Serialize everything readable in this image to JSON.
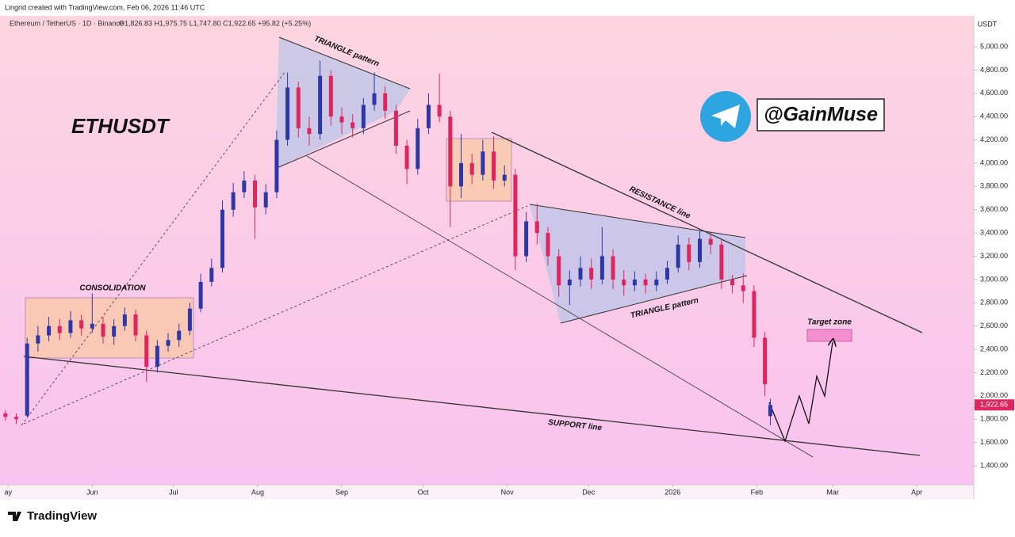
{
  "credit": "Lingrid created with TradingView.com, Feb 06, 2026 11:46 UTC",
  "brand": "TradingView",
  "chart_data": {
    "type": "candlestick",
    "symbol_legend": "Ethereum / TetherUS · 1D · Binance",
    "ohlc_legend": "O1,826.83 H1,975.75 L1,747.80 C1,922.65 +95.82 (+5.25%)",
    "currency": "USDT",
    "last_label": "1,922.65",
    "title": "ETHUSDT",
    "handle": "@GainMuse",
    "annotations": {
      "triangle_top": "TRIANGLE pattern",
      "triangle_bottom": "TRIANGLE pattern",
      "resistance": "RESISTANCE line",
      "support": "SUPPORT line",
      "consolidation": "CONSOLIDATION",
      "target": "Target zone"
    },
    "up_color": "#2e37a8",
    "down_color": "#e0245e",
    "grid": false,
    "x": [
      -32,
      -28,
      -24,
      -20,
      -16,
      -12,
      -8,
      -4,
      0,
      4,
      8,
      12,
      16,
      20,
      24,
      28,
      32,
      36,
      40,
      44,
      48,
      52,
      56,
      60,
      64,
      68,
      72,
      76,
      80,
      84,
      88,
      92,
      96,
      100,
      104,
      108,
      112,
      116,
      120,
      124,
      128,
      132,
      136,
      140,
      144,
      148,
      152,
      156,
      160,
      164,
      168,
      172,
      176,
      180,
      184,
      188,
      192,
      196,
      200,
      204,
      208,
      212,
      216,
      220,
      224,
      228,
      232,
      236,
      240,
      244,
      248,
      250
    ],
    "open": [
      1850,
      1820,
      1830,
      2450,
      2520,
      2600,
      2540,
      2650,
      2580,
      2620,
      2510,
      2600,
      2700,
      2520,
      2250,
      2430,
      2480,
      2560,
      2750,
      2980,
      3100,
      3600,
      3750,
      3850,
      3620,
      3750,
      4200,
      4650,
      4300,
      4250,
      4750,
      4400,
      4350,
      4300,
      4500,
      4600,
      4450,
      4150,
      3950,
      4300,
      4500,
      4400,
      3800,
      4000,
      3900,
      4100,
      3850,
      3900,
      3200,
      3500,
      3400,
      3200,
      2950,
      3000,
      3100,
      3000,
      3200,
      3000,
      2950,
      3000,
      2950,
      3000,
      3100,
      3300,
      3150,
      3350,
      3300,
      3000,
      2950,
      2900,
      2500,
      1826.83
    ],
    "high": [
      1880,
      1850,
      2500,
      2600,
      2680,
      2660,
      2730,
      2700,
      2880,
      2680,
      2660,
      2760,
      2740,
      2560,
      2480,
      2540,
      2620,
      2800,
      3050,
      3180,
      3680,
      3830,
      3930,
      3900,
      3820,
      4280,
      4780,
      4700,
      4400,
      4880,
      4800,
      4480,
      4420,
      4560,
      4780,
      4660,
      4500,
      4200,
      4380,
      4600,
      4770,
      4450,
      4250,
      4080,
      4200,
      4230,
      3980,
      3950,
      3580,
      3650,
      3450,
      3260,
      3080,
      3200,
      3180,
      3450,
      3260,
      3080,
      3070,
      3050,
      3070,
      3160,
      3380,
      3360,
      3420,
      3400,
      3340,
      3040,
      3050,
      2950,
      2550,
      1975.75
    ],
    "low": [
      1790,
      1760,
      1820,
      2380,
      2470,
      2480,
      2500,
      2520,
      2540,
      2450,
      2440,
      2560,
      2470,
      2120,
      2200,
      2380,
      2420,
      2520,
      2720,
      2940,
      3060,
      3540,
      3700,
      3350,
      3560,
      3700,
      4150,
      4220,
      4150,
      4200,
      4320,
      4250,
      4220,
      4250,
      4450,
      4380,
      4080,
      3820,
      3900,
      4250,
      4350,
      3450,
      3700,
      3820,
      3850,
      3780,
      3800,
      3080,
      3150,
      3300,
      3120,
      2850,
      2780,
      2940,
      2920,
      2960,
      2920,
      2860,
      2900,
      2880,
      2900,
      2960,
      3060,
      3080,
      3100,
      3220,
      2920,
      2880,
      2800,
      2420,
      2000,
      1747.8
    ],
    "close": [
      1820,
      1800,
      2450,
      2520,
      2600,
      2540,
      2650,
      2580,
      2620,
      2510,
      2600,
      2700,
      2520,
      2250,
      2430,
      2480,
      2560,
      2750,
      2980,
      3100,
      3600,
      3750,
      3850,
      3620,
      3750,
      4200,
      4650,
      4300,
      4250,
      4750,
      4400,
      4350,
      4300,
      4500,
      4600,
      4450,
      4150,
      3950,
      4300,
      4500,
      4400,
      3800,
      4000,
      3900,
      4100,
      3850,
      3900,
      3200,
      3500,
      3400,
      3200,
      2950,
      3000,
      3100,
      3000,
      3200,
      3000,
      2950,
      3000,
      2950,
      3000,
      3100,
      3300,
      3150,
      3350,
      3300,
      3000,
      2950,
      2900,
      2500,
      2100,
      1922.65
    ],
    "xlim": [
      -34,
      325
    ],
    "xticks": [
      {
        "value": -31,
        "label": "ay"
      },
      {
        "value": 0,
        "label": "Jun"
      },
      {
        "value": 30,
        "label": "Jul"
      },
      {
        "value": 61,
        "label": "Aug"
      },
      {
        "value": 92,
        "label": "Sep"
      },
      {
        "value": 122,
        "label": "Oct"
      },
      {
        "value": 153,
        "label": "Nov"
      },
      {
        "value": 183,
        "label": "Dec"
      },
      {
        "value": 214,
        "label": "2026"
      },
      {
        "value": 245,
        "label": "Feb"
      },
      {
        "value": 273,
        "label": "Mar"
      },
      {
        "value": 304,
        "label": "Apr"
      }
    ],
    "ylim": [
      1237,
      5279
    ],
    "yticks": [
      {
        "value": 1400,
        "label": "1,400.00"
      },
      {
        "value": 1600,
        "label": "1,600.00"
      },
      {
        "value": 1800,
        "label": "1,800.00"
      },
      {
        "value": 2000,
        "label": "2,000.00"
      },
      {
        "value": 2200,
        "label": "2,200.00"
      },
      {
        "value": 2400,
        "label": "2,400.00"
      },
      {
        "value": 2600,
        "label": "2,600.00"
      },
      {
        "value": 2800,
        "label": "2,800.00"
      },
      {
        "value": 3000,
        "label": "3,000.00"
      },
      {
        "value": 3200,
        "label": "3,200.00"
      },
      {
        "value": 3400,
        "label": "3,400.00"
      },
      {
        "value": 3600,
        "label": "3,600.00"
      },
      {
        "value": 3800,
        "label": "3,800.00"
      },
      {
        "value": 4000,
        "label": "4,000.00"
      },
      {
        "value": 4200,
        "label": "4,200.00"
      },
      {
        "value": 4400,
        "label": "4,400.00"
      },
      {
        "value": 4600,
        "label": "4,600.00"
      },
      {
        "value": 4800,
        "label": "4,800.00"
      },
      {
        "value": 5000,
        "label": "5,000.00"
      }
    ]
  }
}
